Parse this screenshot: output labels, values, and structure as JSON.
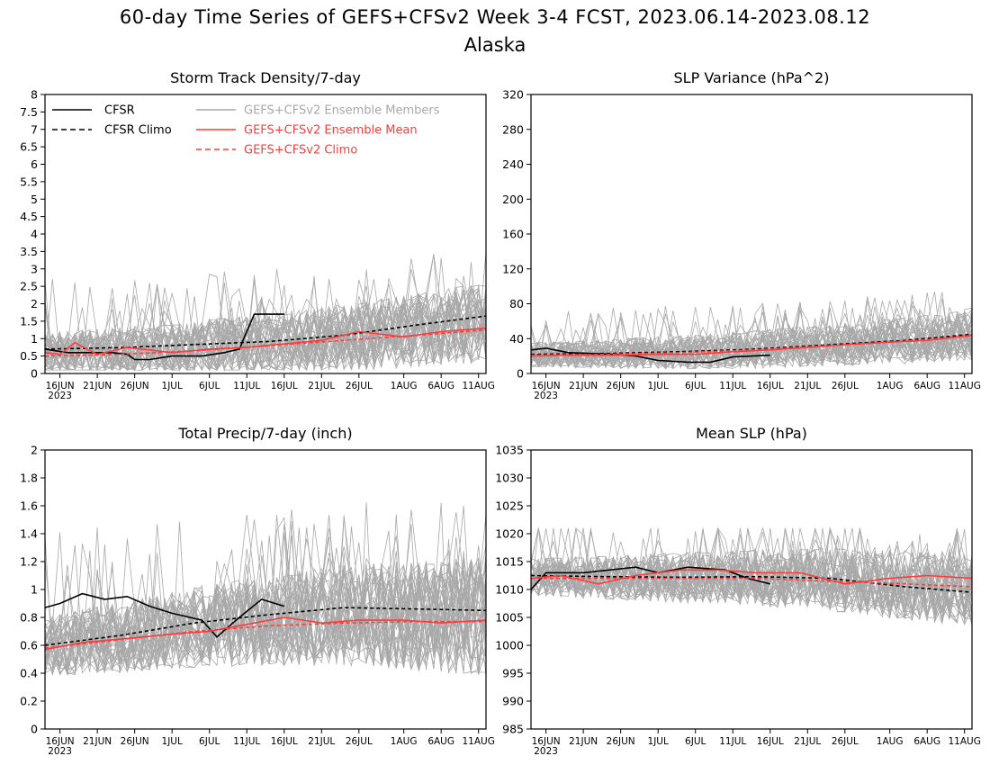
{
  "title": "60-day Time Series of GEFS+CFSv2 Week 3-4 FCST, 2023.06.14-2023.08.12",
  "subtitle": "Alaska",
  "colors": {
    "observed": "#000000",
    "members": "#a8a8a8",
    "ensemble_mean": "#ff3b3b"
  },
  "legend": {
    "cfsr": "CFSR",
    "cfsr_climo": "CFSR Climo",
    "members": "GEFS+CFSv2 Ensemble Members",
    "ens_mean": "GEFS+CFSv2 Ensemble Mean",
    "ens_climo": "GEFS+CFSv2 Climo"
  },
  "x_ticks": [
    "16JUN",
    "21JUN",
    "26JUN",
    "1JUL",
    "6JUL",
    "11JUL",
    "16JUL",
    "21JUL",
    "26JUL",
    "1AUG",
    "6AUG",
    "11AUG"
  ],
  "x_year_label": "2023",
  "chart_data": [
    {
      "type": "line",
      "title": "Storm Track Density/7-day",
      "xlabel": "",
      "ylabel": "",
      "x_range": [
        "2023-06-14",
        "2023-08-12"
      ],
      "ylim": [
        0,
        8
      ],
      "y_ticks": [
        "0",
        "0.5",
        "1",
        "1.5",
        "2",
        "2.5",
        "3",
        "3.5",
        "4",
        "4.5",
        "5",
        "5.5",
        "6",
        "6.5",
        "7",
        "7.5",
        "8"
      ],
      "grid": false,
      "legend_position": "top",
      "members": {
        "count": 40,
        "spread_low": 0.2,
        "spread_high": 2.6,
        "peak_max": 4.1
      },
      "series": [
        {
          "name": "CFSR",
          "style": "solid-black",
          "x": [
            "2023-06-14",
            "2023-06-17",
            "2023-06-20",
            "2023-06-23",
            "2023-06-25",
            "2023-06-26",
            "2023-06-28",
            "2023-07-01",
            "2023-07-05",
            "2023-07-08",
            "2023-07-10",
            "2023-07-12",
            "2023-07-16"
          ],
          "y": [
            0.7,
            0.6,
            0.6,
            0.6,
            0.55,
            0.4,
            0.4,
            0.5,
            0.5,
            0.6,
            0.7,
            1.7,
            1.7
          ]
        },
        {
          "name": "CFSR Climo",
          "style": "dashed-black",
          "x": [
            "2023-06-14",
            "2023-06-24",
            "2023-07-04",
            "2023-07-14",
            "2023-07-24",
            "2023-08-03",
            "2023-08-12"
          ],
          "y": [
            0.7,
            0.74,
            0.83,
            0.92,
            1.1,
            1.4,
            1.65
          ]
        },
        {
          "name": "GEFS+CFSv2 Ensemble Mean",
          "style": "solid-red",
          "x": [
            "2023-06-14",
            "2023-06-16",
            "2023-06-18",
            "2023-06-21",
            "2023-06-25",
            "2023-07-01",
            "2023-07-06",
            "2023-07-11",
            "2023-07-16",
            "2023-07-21",
            "2023-07-26",
            "2023-08-01",
            "2023-08-06",
            "2023-08-12"
          ],
          "y": [
            0.6,
            0.55,
            0.88,
            0.55,
            0.75,
            0.6,
            0.7,
            0.75,
            0.85,
            0.95,
            1.2,
            1.05,
            1.2,
            1.3
          ]
        },
        {
          "name": "GEFS+CFSv2 Climo",
          "style": "dashed-red",
          "x": [
            "2023-06-14",
            "2023-06-24",
            "2023-07-04",
            "2023-07-14",
            "2023-07-24",
            "2023-08-03",
            "2023-08-12"
          ],
          "y": [
            0.5,
            0.55,
            0.65,
            0.8,
            0.95,
            1.1,
            1.25
          ]
        }
      ]
    },
    {
      "type": "line",
      "title": "SLP Variance (hPa^2)",
      "xlabel": "",
      "ylabel": "",
      "x_range": [
        "2023-06-14",
        "2023-08-12"
      ],
      "ylim": [
        0,
        320
      ],
      "y_ticks": [
        "0",
        "40",
        "80",
        "120",
        "160",
        "200",
        "240",
        "280",
        "320"
      ],
      "grid": false,
      "members": {
        "count": 40,
        "spread_low": 10,
        "spread_high": 70,
        "peak_max": 125
      },
      "series": [
        {
          "name": "CFSR",
          "style": "solid-black",
          "x": [
            "2023-06-14",
            "2023-06-16",
            "2023-06-19",
            "2023-06-25",
            "2023-06-28",
            "2023-07-01",
            "2023-07-05",
            "2023-07-08",
            "2023-07-11",
            "2023-07-16"
          ],
          "y": [
            27,
            29,
            24,
            22,
            20,
            15,
            13,
            13,
            19,
            21
          ]
        },
        {
          "name": "CFSR Climo",
          "style": "dashed-black",
          "x": [
            "2023-06-14",
            "2023-06-24",
            "2023-07-04",
            "2023-07-14",
            "2023-07-24",
            "2023-08-03",
            "2023-08-12"
          ],
          "y": [
            22,
            23,
            25,
            28,
            33,
            38,
            45
          ]
        },
        {
          "name": "GEFS+CFSv2 Ensemble Mean",
          "style": "solid-red",
          "x": [
            "2023-06-14",
            "2023-06-18",
            "2023-06-25",
            "2023-07-01",
            "2023-07-06",
            "2023-07-11",
            "2023-07-16",
            "2023-07-21",
            "2023-07-26",
            "2023-08-01",
            "2023-08-06",
            "2023-08-12"
          ],
          "y": [
            20,
            21,
            21,
            22,
            22,
            25,
            27,
            30,
            33,
            36,
            38,
            44
          ]
        },
        {
          "name": "GEFS+CFSv2 Climo",
          "style": "dashed-red",
          "x": [
            "2023-06-14",
            "2023-06-24",
            "2023-07-04",
            "2023-07-14",
            "2023-07-24",
            "2023-08-03",
            "2023-08-12"
          ],
          "y": [
            21,
            22,
            24,
            27,
            32,
            37,
            43
          ]
        }
      ]
    },
    {
      "type": "line",
      "title": "Total Precip/7-day (inch)",
      "xlabel": "",
      "ylabel": "",
      "x_range": [
        "2023-06-14",
        "2023-08-12"
      ],
      "ylim": [
        0,
        2
      ],
      "y_ticks": [
        "0",
        "0.2",
        "0.4",
        "0.6",
        "0.8",
        "1",
        "1.2",
        "1.4",
        "1.6",
        "1.8",
        "2"
      ],
      "grid": false,
      "members": {
        "count": 40,
        "spread_low": 0.3,
        "spread_high": 1.2,
        "peak_max": 1.66
      },
      "series": [
        {
          "name": "CFSR",
          "style": "solid-black",
          "x": [
            "2023-06-14",
            "2023-06-16",
            "2023-06-19",
            "2023-06-22",
            "2023-06-25",
            "2023-06-28",
            "2023-07-01",
            "2023-07-05",
            "2023-07-07",
            "2023-07-10",
            "2023-07-13",
            "2023-07-16"
          ],
          "y": [
            0.87,
            0.9,
            0.97,
            0.93,
            0.95,
            0.88,
            0.83,
            0.78,
            0.66,
            0.8,
            0.93,
            0.88
          ]
        },
        {
          "name": "CFSR Climo",
          "style": "dashed-black",
          "x": [
            "2023-06-14",
            "2023-06-24",
            "2023-07-04",
            "2023-07-14",
            "2023-07-24",
            "2023-08-03",
            "2023-08-12"
          ],
          "y": [
            0.6,
            0.67,
            0.76,
            0.82,
            0.87,
            0.86,
            0.85
          ]
        },
        {
          "name": "GEFS+CFSv2 Ensemble Mean",
          "style": "solid-red",
          "x": [
            "2023-06-14",
            "2023-06-19",
            "2023-06-25",
            "2023-07-01",
            "2023-07-06",
            "2023-07-11",
            "2023-07-16",
            "2023-07-21",
            "2023-07-26",
            "2023-08-01",
            "2023-08-06",
            "2023-08-12"
          ],
          "y": [
            0.57,
            0.62,
            0.65,
            0.68,
            0.7,
            0.75,
            0.8,
            0.76,
            0.78,
            0.78,
            0.76,
            0.78
          ]
        },
        {
          "name": "GEFS+CFSv2 Climo",
          "style": "dashed-red",
          "x": [
            "2023-06-14",
            "2023-06-24",
            "2023-07-04",
            "2023-07-14",
            "2023-07-24",
            "2023-08-03",
            "2023-08-12"
          ],
          "y": [
            0.58,
            0.64,
            0.7,
            0.74,
            0.76,
            0.77,
            0.77
          ]
        }
      ]
    },
    {
      "type": "line",
      "title": "Mean SLP (hPa)",
      "xlabel": "",
      "ylabel": "",
      "x_range": [
        "2023-06-14",
        "2023-08-12"
      ],
      "ylim": [
        985,
        1035
      ],
      "y_ticks": [
        "985",
        "990",
        "995",
        "1000",
        "1005",
        "1010",
        "1015",
        "1020",
        "1025",
        "1030",
        "1035"
      ],
      "grid": false,
      "members": {
        "count": 40,
        "spread_low": 1005,
        "spread_high": 1019,
        "peak_max": 1021
      },
      "series": [
        {
          "name": "CFSR",
          "style": "solid-black",
          "x": [
            "2023-06-14",
            "2023-06-16",
            "2023-06-21",
            "2023-06-28",
            "2023-07-01",
            "2023-07-05",
            "2023-07-10",
            "2023-07-13",
            "2023-07-16"
          ],
          "y": [
            1010,
            1013,
            1013,
            1014,
            1013,
            1014,
            1013.5,
            1012,
            1011
          ]
        },
        {
          "name": "CFSR Climo",
          "style": "dashed-black",
          "x": [
            "2023-06-14",
            "2023-06-24",
            "2023-07-04",
            "2023-07-14",
            "2023-07-24",
            "2023-08-03",
            "2023-08-12"
          ],
          "y": [
            1012.5,
            1012.3,
            1012.2,
            1012.3,
            1012,
            1010.5,
            1009.5
          ]
        },
        {
          "name": "GEFS+CFSv2 Ensemble Mean",
          "style": "solid-red",
          "x": [
            "2023-06-14",
            "2023-06-18",
            "2023-06-23",
            "2023-06-28",
            "2023-07-04",
            "2023-07-09",
            "2023-07-14",
            "2023-07-20",
            "2023-07-26",
            "2023-08-01",
            "2023-08-06",
            "2023-08-12"
          ],
          "y": [
            1012,
            1012.5,
            1011,
            1012.5,
            1013.5,
            1013.5,
            1013,
            1013,
            1011,
            1012,
            1012.5,
            1012
          ]
        },
        {
          "name": "GEFS+CFSv2 Climo",
          "style": "dashed-red",
          "x": [
            "2023-06-14",
            "2023-06-24",
            "2023-07-04",
            "2023-07-14",
            "2023-07-24",
            "2023-08-03",
            "2023-08-12"
          ],
          "y": [
            1012,
            1012,
            1012,
            1012,
            1011.5,
            1011,
            1010.5
          ]
        }
      ]
    }
  ]
}
